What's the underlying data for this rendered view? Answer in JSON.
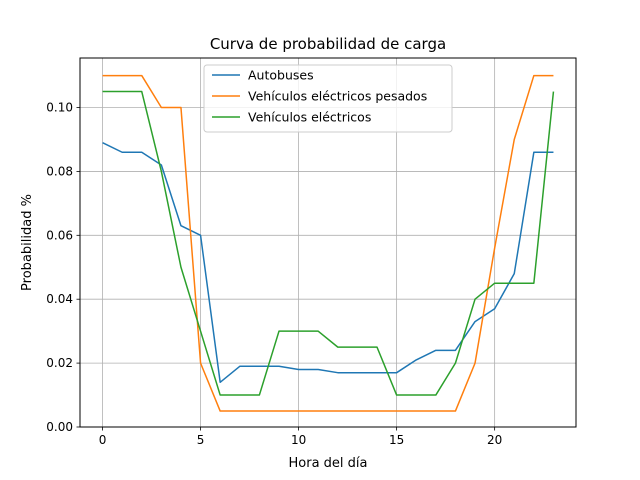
{
  "chart_data": {
    "type": "line",
    "title": "Curva de probabilidad de carga",
    "xlabel": "Hora del día",
    "ylabel": "Probabilidad %",
    "xlim": [
      -1.15,
      24.15
    ],
    "ylim": [
      0,
      0.1155
    ],
    "xticks": [
      0,
      5,
      10,
      15,
      20
    ],
    "xtick_labels": [
      "0",
      "5",
      "10",
      "15",
      "20"
    ],
    "yticks": [
      0.0,
      0.02,
      0.04,
      0.06,
      0.08,
      0.1
    ],
    "ytick_labels": [
      "0.00",
      "0.02",
      "0.04",
      "0.06",
      "0.08",
      "0.10"
    ],
    "grid": true,
    "legend_position": "top-center",
    "x": [
      0,
      1,
      2,
      3,
      4,
      5,
      6,
      7,
      8,
      9,
      10,
      11,
      12,
      13,
      14,
      15,
      16,
      17,
      18,
      19,
      20,
      21,
      22,
      23
    ],
    "series": [
      {
        "name": "Autobuses",
        "color": "#1f77b4",
        "values": [
          0.089,
          0.086,
          0.086,
          0.082,
          0.063,
          0.06,
          0.014,
          0.019,
          0.019,
          0.019,
          0.018,
          0.018,
          0.017,
          0.017,
          0.017,
          0.017,
          0.021,
          0.024,
          0.024,
          0.033,
          0.037,
          0.048,
          0.086,
          0.086
        ]
      },
      {
        "name": "Vehículos eléctricos pesados",
        "color": "#ff7f0e",
        "values": [
          0.11,
          0.11,
          0.11,
          0.1,
          0.1,
          0.02,
          0.005,
          0.005,
          0.005,
          0.005,
          0.005,
          0.005,
          0.005,
          0.005,
          0.005,
          0.005,
          0.005,
          0.005,
          0.005,
          0.02,
          0.056,
          0.09,
          0.11,
          0.11
        ]
      },
      {
        "name": "Vehículos eléctricos",
        "color": "#2ca02c",
        "values": [
          0.105,
          0.105,
          0.105,
          0.08,
          0.05,
          0.03,
          0.01,
          0.01,
          0.01,
          0.03,
          0.03,
          0.03,
          0.025,
          0.025,
          0.025,
          0.01,
          0.01,
          0.01,
          0.02,
          0.04,
          0.045,
          0.045,
          0.045,
          0.105
        ]
      }
    ]
  }
}
